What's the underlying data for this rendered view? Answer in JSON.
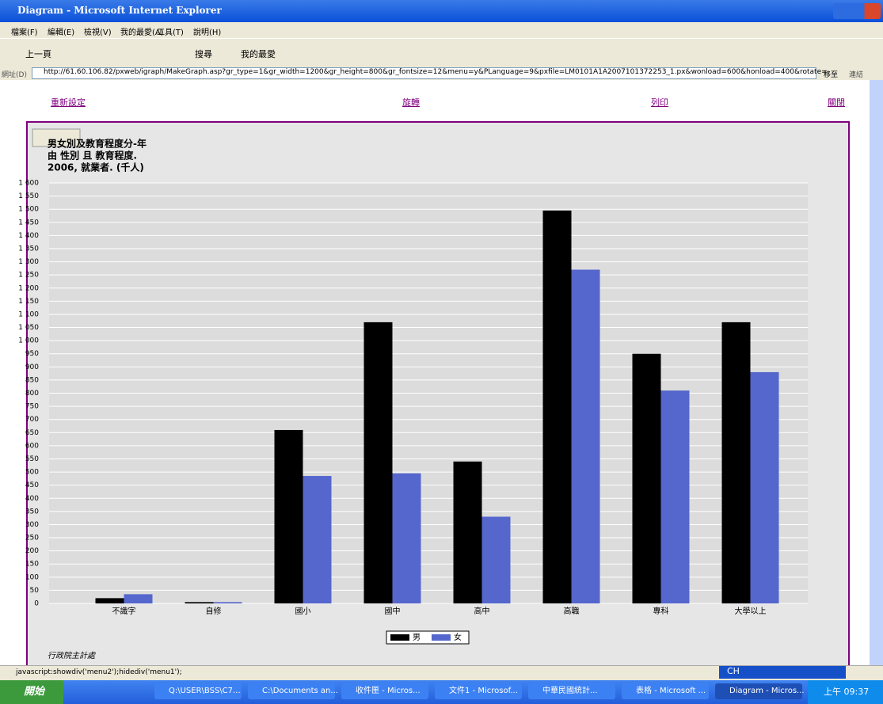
{
  "window": {
    "title": "Diagram - Microsoft Internet Explorer"
  },
  "menu": [
    "檔案(F)",
    "編輯(E)",
    "檢視(V)",
    "我的最愛(A)",
    "工具(T)",
    "說明(H)"
  ],
  "toolbar": {
    "back": "上一頁",
    "search": "搜尋",
    "favorites": "我的最愛"
  },
  "address": {
    "label": "網址(D)",
    "url": "http://61.60.106.82/pxweb/igraph/MakeGraph.asp?gr_type=1&gr_width=1200&gr_height=800&gr_fontsize=12&menu=y&PLanguage=9&pxfile=LM0101A1A2007101372253_1.px&wonload=600&honload=400&rotate=",
    "go": "移至",
    "links": "連結"
  },
  "page_links": [
    "重新設定",
    "旋轉",
    "列印",
    "關閉"
  ],
  "chart_data": {
    "type": "bar",
    "title": [
      "男女別及教育程度分-年",
      "由 性別 且 教育程度.",
      "2006, 就業者. (千人)"
    ],
    "source": "行政院主計處",
    "categories": [
      "不識字",
      "自修",
      "國小",
      "國中",
      "高中",
      "高職",
      "專科",
      "大學以上"
    ],
    "series": [
      {
        "name": "男",
        "color": "#000000",
        "values": [
          20,
          5,
          660,
          1070,
          540,
          1495,
          950,
          1070
        ]
      },
      {
        "name": "女",
        "color": "#5566cc",
        "values": [
          35,
          5,
          485,
          495,
          330,
          1270,
          810,
          880
        ]
      }
    ],
    "ylim": [
      0,
      1600
    ],
    "yticks": [
      0,
      50,
      100,
      150,
      200,
      250,
      300,
      350,
      400,
      450,
      500,
      550,
      600,
      650,
      700,
      750,
      800,
      850,
      900,
      950,
      {
        "value": 1000,
        "label": "1 000"
      },
      {
        "value": 1050,
        "label": "1 050"
      },
      {
        "value": 1100,
        "label": "1 100"
      },
      {
        "value": 1150,
        "label": "1 150"
      },
      {
        "value": 1200,
        "label": "1 200"
      },
      {
        "value": 1250,
        "label": "1 250"
      },
      {
        "value": 1300,
        "label": "1 300"
      },
      {
        "value": 1350,
        "label": "1 350"
      },
      {
        "value": 1400,
        "label": "1 400"
      },
      {
        "value": 1450,
        "label": "1 450"
      },
      {
        "value": 1500,
        "label": "1 500"
      },
      {
        "value": 1550,
        "label": "1 550"
      },
      {
        "value": 1600,
        "label": "1 600"
      }
    ],
    "grid": true,
    "legend": "bottom"
  },
  "status": "javascript:showdiv('menu2');hidediv('menu1');",
  "taskbar": {
    "start": "開始",
    "items": [
      "Q:\\USER\\BSS\\C7...",
      "C:\\Documents an...",
      "收件匣 - Micros...",
      "文件1 - Microsof...",
      "中華民國統計...",
      "表格 - Microsoft ...",
      "Diagram - Micros..."
    ],
    "lang": "CH",
    "clock": "上午 09:37"
  }
}
